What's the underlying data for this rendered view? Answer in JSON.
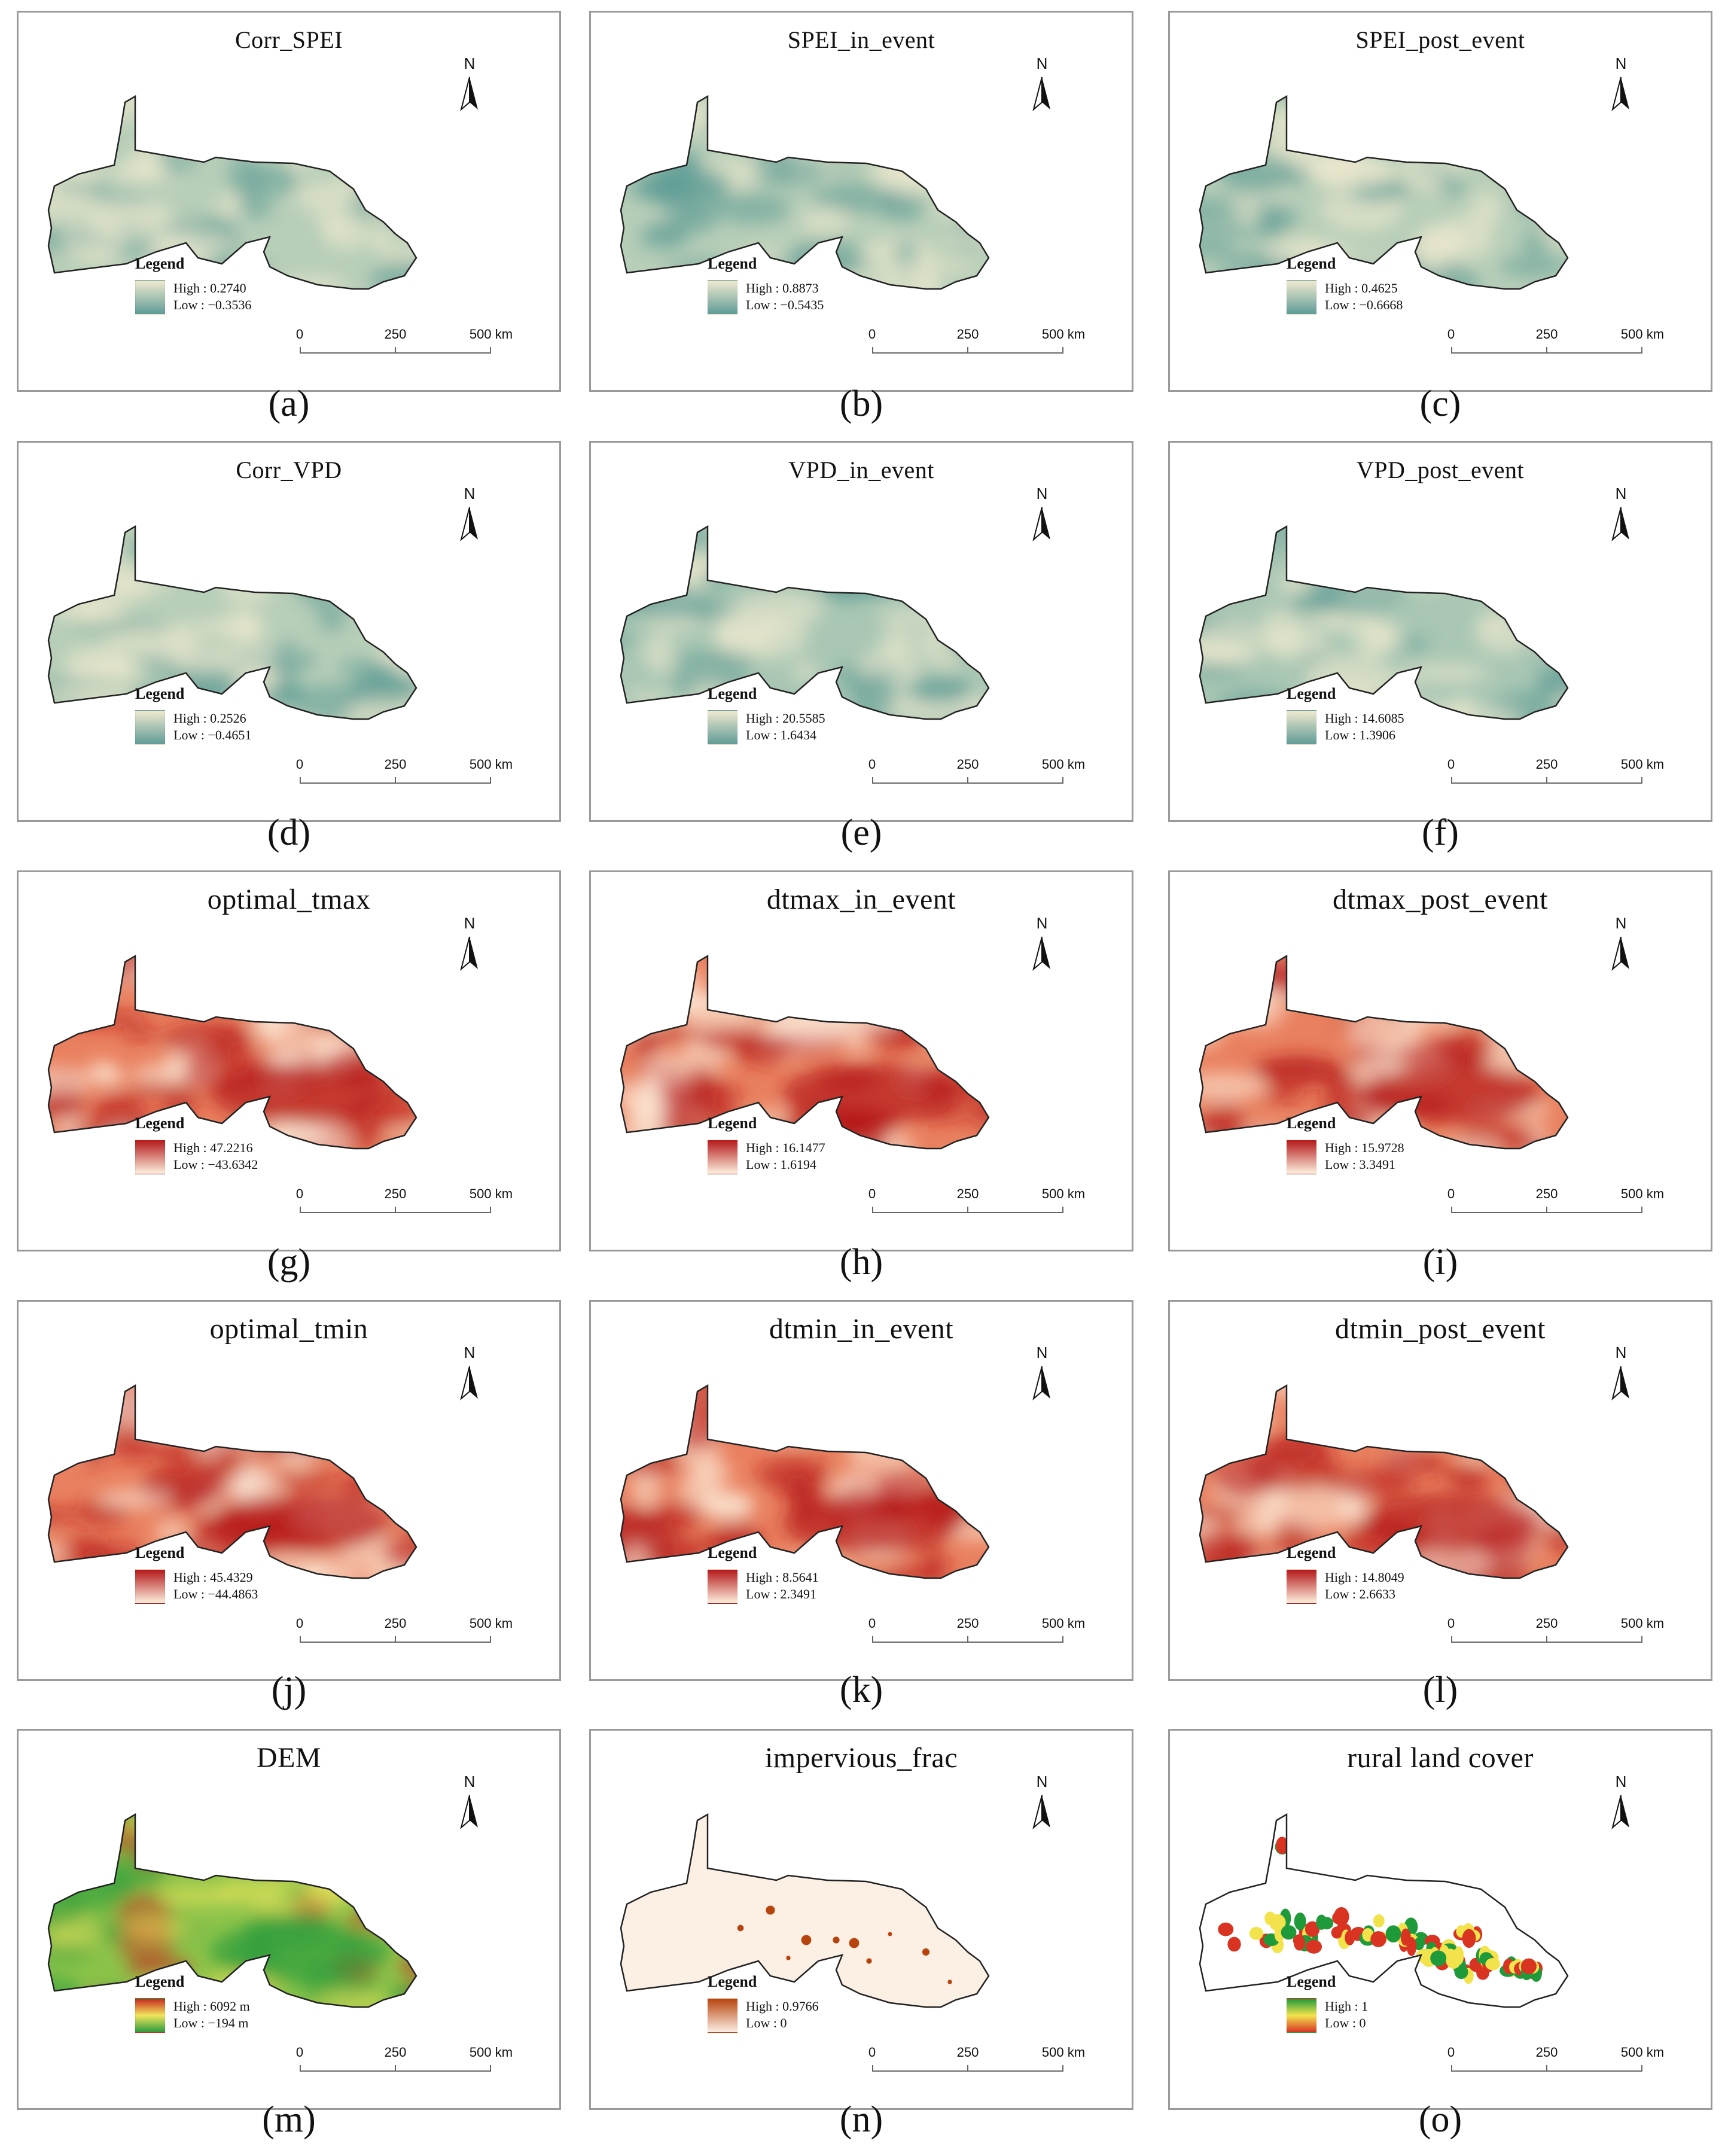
{
  "north_label": "N",
  "legend_label": "Legend",
  "scale": {
    "labels": [
      "0",
      "250",
      "500 km"
    ]
  },
  "colors": {
    "teal_low": "#5f9c96",
    "cream_high": "#f0ead0",
    "red_high": "#b5181a",
    "red_low": "#fdf1df",
    "dem_high": "#c8281f",
    "dem_mid": "#f2e55c",
    "dem_low": "#2a9b3c",
    "imp_high": "#b8440d",
    "imp_low": "#fcefe4",
    "lc_high": "#1f9a3a",
    "lc_mid": "#f2e34d",
    "lc_low": "#d93322"
  },
  "panels": [
    {
      "title": "Corr_SPEI",
      "caption": "(a)",
      "high": "High : 0.2740",
      "low": "Low : −0.3536",
      "ramp": "teal"
    },
    {
      "title": "SPEI_in_event",
      "caption": "(b)",
      "high": "High : 0.8873",
      "low": "Low : −0.5435",
      "ramp": "teal"
    },
    {
      "title": "SPEI_post_event",
      "caption": "(c)",
      "high": "High : 0.4625",
      "low": "Low : −0.6668",
      "ramp": "teal"
    },
    {
      "title": "Corr_VPD",
      "caption": "(d)",
      "high": "High : 0.2526",
      "low": "Low : −0.4651",
      "ramp": "teal"
    },
    {
      "title": "VPD_in_event",
      "caption": "(e)",
      "high": "High : 20.5585",
      "low": "Low : 1.6434",
      "ramp": "teal"
    },
    {
      "title": "VPD_post_event",
      "caption": "(f)",
      "high": "High : 14.6085",
      "low": "Low : 1.3906",
      "ramp": "teal"
    },
    {
      "title": "optimal_tmax",
      "caption": "(g)",
      "high": "High : 47.2216",
      "low": "Low : −43.6342",
      "ramp": "red"
    },
    {
      "title": "dtmax_in_event",
      "caption": "(h)",
      "high": "High : 16.1477",
      "low": "Low : 1.6194",
      "ramp": "red"
    },
    {
      "title": "dtmax_post_event",
      "caption": "(i)",
      "high": "High : 15.9728",
      "low": "Low : 3.3491",
      "ramp": "red"
    },
    {
      "title": "optimal_tmin",
      "caption": "(j)",
      "high": "High : 45.4329",
      "low": "Low : −44.4863",
      "ramp": "red"
    },
    {
      "title": "dtmin_in_event",
      "caption": "(k)",
      "high": "High : 8.5641",
      "low": "Low : 2.3491",
      "ramp": "red"
    },
    {
      "title": "dtmin_post_event",
      "caption": "(l)",
      "high": "High : 14.8049",
      "low": "Low : 2.6633",
      "ramp": "red"
    },
    {
      "title": "DEM",
      "caption": "(m)",
      "high": "High : 6092 m",
      "low": "Low : −194 m",
      "ramp": "dem"
    },
    {
      "title": "impervious_frac",
      "caption": "(n)",
      "high": "High : 0.9766",
      "low": "Low : 0",
      "ramp": "imp"
    },
    {
      "title": "rural land cover",
      "caption": "(o)",
      "high": "High : 1",
      "low": "Low : 0",
      "ramp": "lc"
    }
  ]
}
